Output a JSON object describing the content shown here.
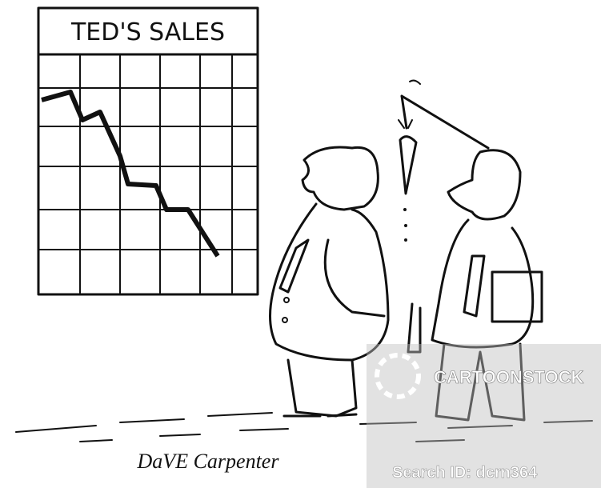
{
  "cartoon": {
    "chart_title": "TED'S SALES",
    "signature": "DaVE Carpenter",
    "watermark": {
      "brand": "CARTOONSTOCK",
      "search_id": "Search ID: dcrn364"
    }
  }
}
